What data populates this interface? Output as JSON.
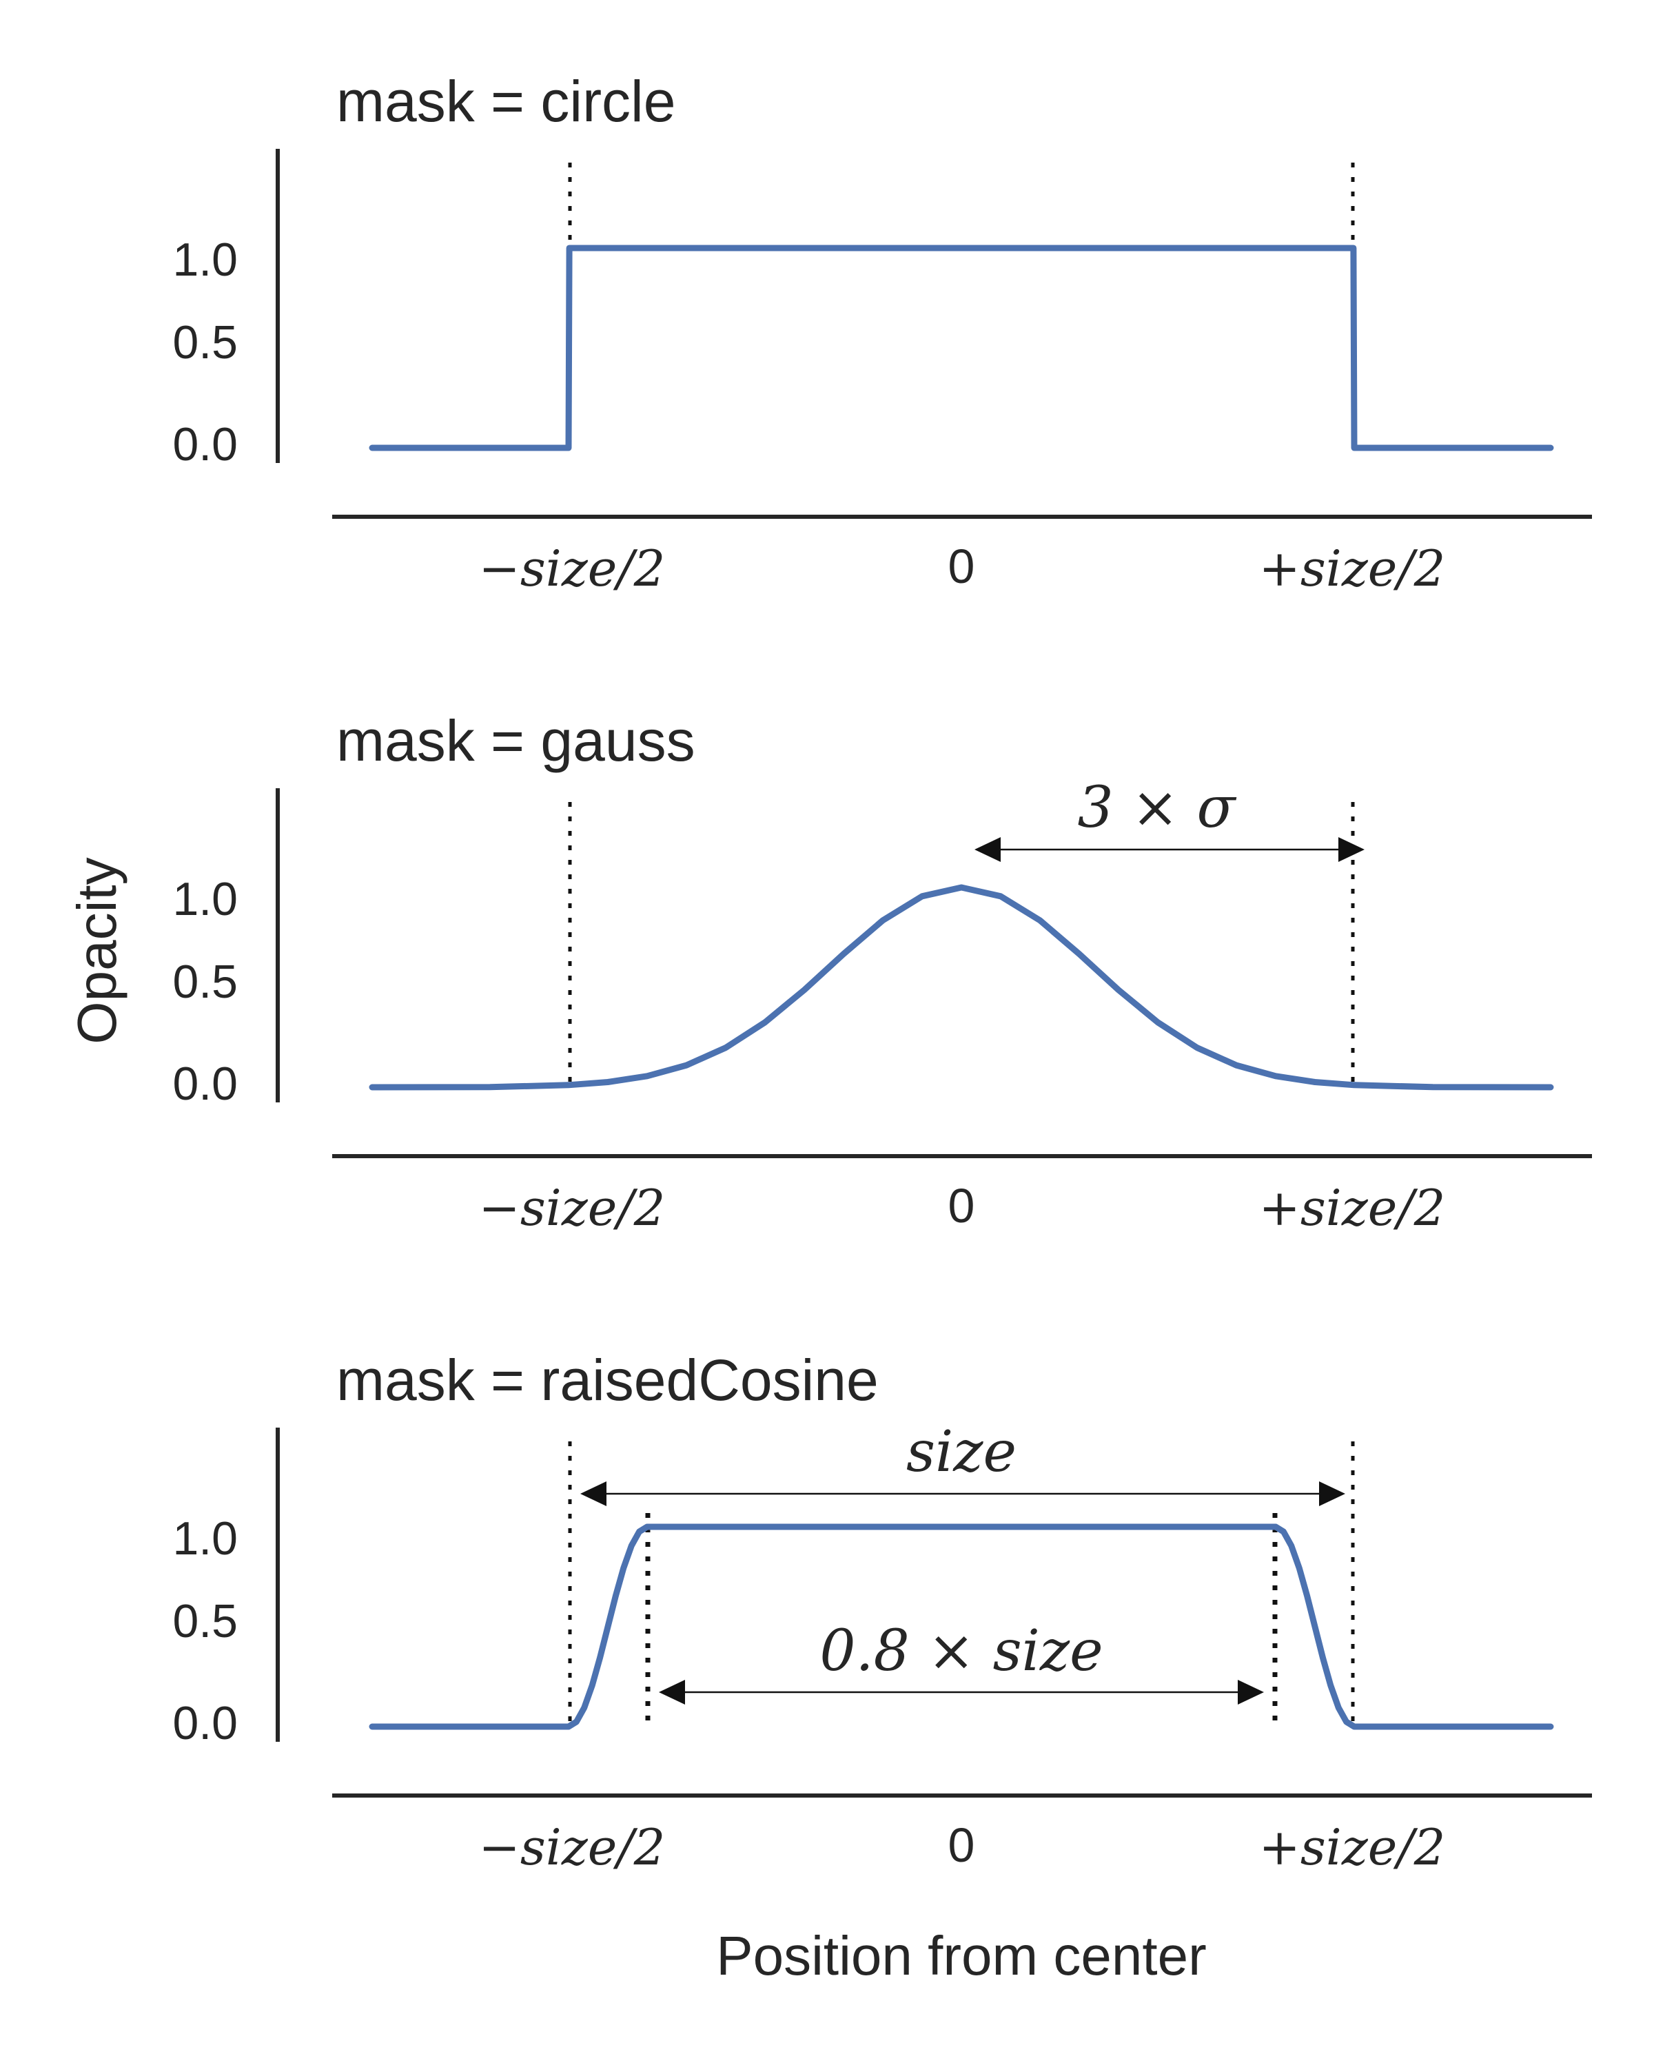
{
  "chart_data": [
    {
      "type": "line",
      "title": "mask = circle",
      "ylabel": "",
      "xlabel": "",
      "x_range": [
        -0.75,
        0.75
      ],
      "ylim": [
        -0.1,
        1.5
      ],
      "yticks": [
        0.0,
        0.5,
        1.0
      ],
      "ytick_labels": [
        "0.0",
        "0.5",
        "1.0"
      ],
      "xtick_labels": [
        "−size/2",
        "0",
        "+size/2"
      ],
      "series": [
        {
          "name": "circle",
          "points": [
            [
              -0.75,
              0
            ],
            [
              -0.5,
              0
            ],
            [
              -0.499,
              1
            ],
            [
              0.499,
              1
            ],
            [
              0.5,
              0
            ],
            [
              0.75,
              0
            ]
          ]
        }
      ],
      "vlines": [
        -0.5,
        0.5
      ],
      "annotations": []
    },
    {
      "type": "line",
      "title": "mask = gauss",
      "ylabel": "Opacity",
      "xlabel": "",
      "x_range": [
        -0.75,
        0.75
      ],
      "ylim": [
        -0.1,
        1.5
      ],
      "yticks": [
        0.0,
        0.5,
        1.0
      ],
      "ytick_labels": [
        "0.0",
        "0.5",
        "1.0"
      ],
      "xtick_labels": [
        "−size/2",
        "0",
        "+size/2"
      ],
      "series": [
        {
          "name": "gauss",
          "points": [
            [
              -0.75,
              0.0
            ],
            [
              -0.6,
              0.0007
            ],
            [
              -0.5,
              0.011
            ],
            [
              -0.45,
              0.026
            ],
            [
              -0.4,
              0.056
            ],
            [
              -0.35,
              0.11
            ],
            [
              -0.3,
              0.198
            ],
            [
              -0.25,
              0.325
            ],
            [
              -0.2,
              0.487
            ],
            [
              -0.15,
              0.667
            ],
            [
              -0.1,
              0.835
            ],
            [
              -0.05,
              0.956
            ],
            [
              0.0,
              1.0
            ],
            [
              0.05,
              0.956
            ],
            [
              0.1,
              0.835
            ],
            [
              0.15,
              0.667
            ],
            [
              0.2,
              0.487
            ],
            [
              0.25,
              0.325
            ],
            [
              0.3,
              0.198
            ],
            [
              0.35,
              0.11
            ],
            [
              0.4,
              0.056
            ],
            [
              0.45,
              0.026
            ],
            [
              0.5,
              0.011
            ],
            [
              0.6,
              0.0007
            ],
            [
              0.75,
              0.0
            ]
          ]
        }
      ],
      "vlines": [
        -0.5,
        0.5
      ],
      "annotations": [
        {
          "text": "3 × σ",
          "from": 0.02,
          "to": 0.49,
          "y": 1.19
        }
      ]
    },
    {
      "type": "line",
      "title": "mask = raisedCosine",
      "ylabel": "",
      "xlabel": "Position from center",
      "x_range": [
        -0.75,
        0.75
      ],
      "ylim": [
        -0.1,
        1.5
      ],
      "yticks": [
        0.0,
        0.5,
        1.0
      ],
      "ytick_labels": [
        "0.0",
        "0.5",
        "1.0"
      ],
      "xtick_labels": [
        "−size/2",
        "0",
        "+size/2"
      ],
      "series": [
        {
          "name": "raisedCosine",
          "points": [
            [
              -0.75,
              0
            ],
            [
              -0.5,
              0
            ],
            [
              -0.49,
              0.024
            ],
            [
              -0.48,
              0.095
            ],
            [
              -0.47,
              0.206
            ],
            [
              -0.46,
              0.345
            ],
            [
              -0.45,
              0.5
            ],
            [
              -0.44,
              0.655
            ],
            [
              -0.43,
              0.794
            ],
            [
              -0.42,
              0.905
            ],
            [
              -0.41,
              0.976
            ],
            [
              -0.4,
              1
            ],
            [
              0.4,
              1
            ],
            [
              0.41,
              0.976
            ],
            [
              0.42,
              0.905
            ],
            [
              0.43,
              0.794
            ],
            [
              0.44,
              0.655
            ],
            [
              0.45,
              0.5
            ],
            [
              0.46,
              0.345
            ],
            [
              0.47,
              0.206
            ],
            [
              0.48,
              0.095
            ],
            [
              0.49,
              0.024
            ],
            [
              0.5,
              0
            ],
            [
              0.75,
              0
            ]
          ]
        }
      ],
      "vlines": [
        -0.5,
        0.5
      ],
      "vlines_inner": [
        -0.4,
        0.4
      ],
      "annotations": [
        {
          "text": "size",
          "from": -0.49,
          "to": 0.49,
          "y": 1.19
        },
        {
          "text": "0.8 × size",
          "from": -0.385,
          "to": 0.385,
          "y": 0.2
        }
      ]
    }
  ]
}
